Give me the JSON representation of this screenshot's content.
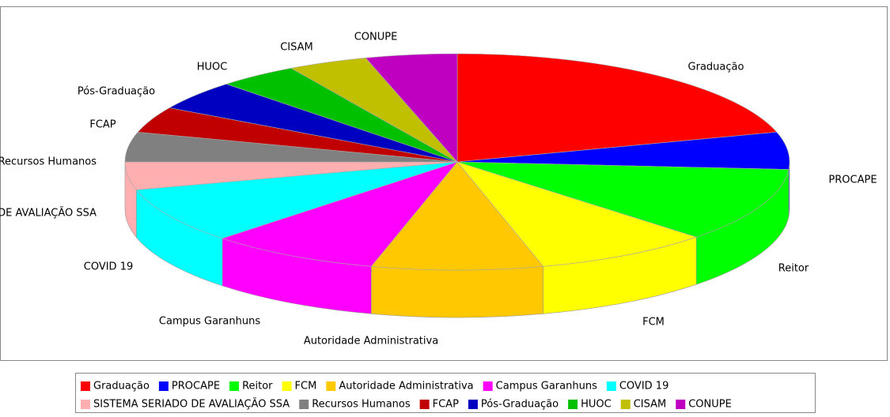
{
  "chart_data": {
    "type": "pie",
    "categories": [
      "Graduação",
      "PROCAPE",
      "Reitor",
      "FCM",
      "Autoridade Administrativa",
      "Campus Garanhuns",
      "COVID 19",
      "SISTEMA SERIADO DE AVALIAÇÃO SSA",
      "Recursos Humanos",
      "FCAP",
      "Pós-Graduação",
      "HUOC",
      "CISAM",
      "CONUPE"
    ],
    "values": [
      74,
      20,
      40,
      31,
      30,
      30,
      30,
      15,
      16,
      14,
      16,
      14,
      14,
      16
    ],
    "colors": [
      "#ff0000",
      "#0000ff",
      "#00ff00",
      "#ffff00",
      "#ffc800",
      "#ff00ff",
      "#00ffff",
      "#ffafaf",
      "#808080",
      "#c00000",
      "#0000c0",
      "#00c000",
      "#c0c000",
      "#c000c0"
    ],
    "legend": "bottom"
  }
}
